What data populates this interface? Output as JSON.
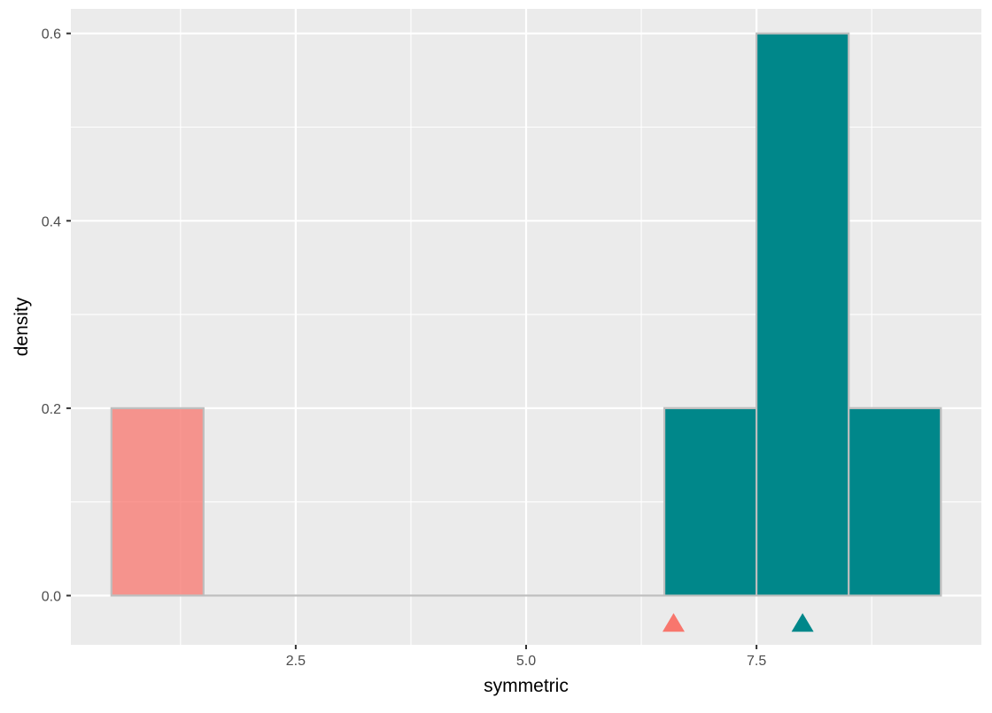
{
  "chart_data": {
    "type": "histogram",
    "xlabel": "symmetric",
    "ylabel": "density",
    "xlim": [
      0.06,
      9.94
    ],
    "ylim": [
      -0.0525,
      0.6262
    ],
    "x_ticks": [
      2.5,
      5.0,
      7.5
    ],
    "x_tick_labels": [
      "2.5",
      "5.0",
      "7.5"
    ],
    "y_ticks": [
      0.0,
      0.2,
      0.4,
      0.6
    ],
    "y_tick_labels": [
      "0.0",
      "0.2",
      "0.4",
      "0.6"
    ],
    "grid": true,
    "legend": "none",
    "bin_edges": [
      0.5,
      1.5,
      2.5,
      3.5,
      4.5,
      5.5,
      6.5,
      7.5,
      8.5,
      9.5
    ],
    "series": [
      {
        "color": "#F8766D",
        "opacity": 0.75,
        "densities": [
          0.2,
          0,
          0,
          0,
          0,
          0,
          0.2,
          0.4,
          0.2
        ],
        "marker_x": 6.6
      },
      {
        "color": "#00878A",
        "opacity": 1.0,
        "densities": [
          0,
          0,
          0,
          0,
          0,
          0,
          0.2,
          0.6,
          0.2
        ],
        "marker_x": 8.0
      }
    ],
    "colors": {
      "panel": "#EBEBEB",
      "grid": "#FFFFFF",
      "bar_outline": "#BEBEBE",
      "tick": "#333333"
    }
  }
}
